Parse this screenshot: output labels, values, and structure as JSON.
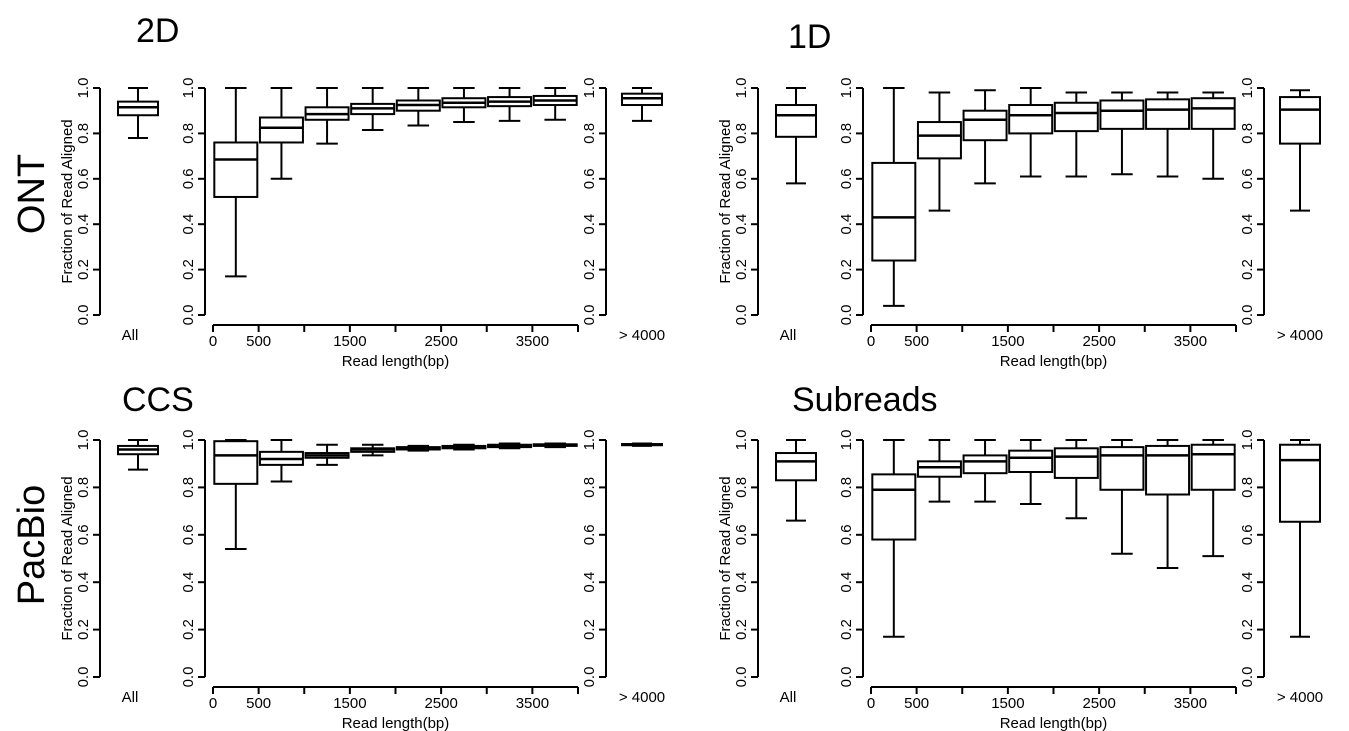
{
  "labels": {
    "row_top": "ONT",
    "row_bottom": "PacBio",
    "panel_2d": "2D",
    "panel_1d": "1D",
    "panel_ccs": "CCS",
    "panel_sub": "Subreads"
  },
  "chart_data": [
    {
      "type": "boxplot",
      "title": "2D",
      "ylabel": "Fraction of Read Aligned",
      "xlabel": "Read length(bp)",
      "ylim": [
        0,
        1
      ],
      "yticks": [
        "0.0",
        "0.2",
        "0.4",
        "0.6",
        "0.8",
        "1.0"
      ],
      "all_label": "All",
      "gt_label": "> 4000",
      "xticks": [
        "0",
        "500",
        "1500",
        "2500",
        "3500"
      ],
      "all": {
        "min": 0.78,
        "q1": 0.88,
        "median": 0.915,
        "q3": 0.94,
        "max": 1.0
      },
      "bins": [
        {
          "min": 0.17,
          "q1": 0.52,
          "median": 0.685,
          "q3": 0.76,
          "max": 1.0
        },
        {
          "min": 0.6,
          "q1": 0.76,
          "median": 0.825,
          "q3": 0.87,
          "max": 1.0
        },
        {
          "min": 0.755,
          "q1": 0.86,
          "median": 0.885,
          "q3": 0.915,
          "max": 1.0
        },
        {
          "min": 0.815,
          "q1": 0.885,
          "median": 0.91,
          "q3": 0.93,
          "max": 1.0
        },
        {
          "min": 0.835,
          "q1": 0.9,
          "median": 0.925,
          "q3": 0.945,
          "max": 1.0
        },
        {
          "min": 0.85,
          "q1": 0.915,
          "median": 0.935,
          "q3": 0.955,
          "max": 1.0
        },
        {
          "min": 0.855,
          "q1": 0.92,
          "median": 0.94,
          "q3": 0.96,
          "max": 1.0
        },
        {
          "min": 0.86,
          "q1": 0.925,
          "median": 0.945,
          "q3": 0.965,
          "max": 1.0
        }
      ],
      "gt": {
        "min": 0.855,
        "q1": 0.925,
        "median": 0.955,
        "q3": 0.975,
        "max": 1.0
      }
    },
    {
      "type": "boxplot",
      "title": "1D",
      "ylabel": "Fraction of Read Aligned",
      "xlabel": "Read length(bp)",
      "ylim": [
        0,
        1
      ],
      "yticks": [
        "0.0",
        "0.2",
        "0.4",
        "0.6",
        "0.8",
        "1.0"
      ],
      "all_label": "All",
      "gt_label": "> 4000",
      "xticks": [
        "0",
        "500",
        "1500",
        "2500",
        "3500"
      ],
      "all": {
        "min": 0.58,
        "q1": 0.785,
        "median": 0.88,
        "q3": 0.925,
        "max": 1.0
      },
      "bins": [
        {
          "min": 0.04,
          "q1": 0.24,
          "median": 0.43,
          "q3": 0.67,
          "max": 1.0
        },
        {
          "min": 0.46,
          "q1": 0.69,
          "median": 0.79,
          "q3": 0.85,
          "max": 0.98
        },
        {
          "min": 0.58,
          "q1": 0.77,
          "median": 0.86,
          "q3": 0.9,
          "max": 0.99
        },
        {
          "min": 0.61,
          "q1": 0.8,
          "median": 0.88,
          "q3": 0.925,
          "max": 1.0
        },
        {
          "min": 0.61,
          "q1": 0.81,
          "median": 0.89,
          "q3": 0.935,
          "max": 0.98
        },
        {
          "min": 0.62,
          "q1": 0.82,
          "median": 0.9,
          "q3": 0.945,
          "max": 0.98
        },
        {
          "min": 0.61,
          "q1": 0.82,
          "median": 0.905,
          "q3": 0.95,
          "max": 0.98
        },
        {
          "min": 0.6,
          "q1": 0.82,
          "median": 0.91,
          "q3": 0.955,
          "max": 0.98
        }
      ],
      "gt": {
        "min": 0.46,
        "q1": 0.755,
        "median": 0.905,
        "q3": 0.96,
        "max": 0.99
      }
    },
    {
      "type": "boxplot",
      "title": "CCS",
      "ylabel": "Fraction of Read Aligned",
      "xlabel": "Read length(bp)",
      "ylim": [
        0,
        1
      ],
      "yticks": [
        "0.0",
        "0.2",
        "0.4",
        "0.6",
        "0.8",
        "1.0"
      ],
      "all_label": "All",
      "gt_label": "> 4000",
      "xticks": [
        "0",
        "500",
        "1500",
        "2500",
        "3500"
      ],
      "all": {
        "min": 0.875,
        "q1": 0.94,
        "median": 0.96,
        "q3": 0.975,
        "max": 1.0
      },
      "bins": [
        {
          "min": 0.54,
          "q1": 0.815,
          "median": 0.935,
          "q3": 0.995,
          "max": 1.0
        },
        {
          "min": 0.825,
          "q1": 0.895,
          "median": 0.92,
          "q3": 0.95,
          "max": 1.0
        },
        {
          "min": 0.895,
          "q1": 0.925,
          "median": 0.935,
          "q3": 0.945,
          "max": 0.98
        },
        {
          "min": 0.935,
          "q1": 0.95,
          "median": 0.96,
          "q3": 0.965,
          "max": 0.98
        },
        {
          "min": 0.955,
          "q1": 0.96,
          "median": 0.965,
          "q3": 0.97,
          "max": 0.975
        },
        {
          "min": 0.96,
          "q1": 0.965,
          "median": 0.97,
          "q3": 0.975,
          "max": 0.98
        },
        {
          "min": 0.965,
          "q1": 0.97,
          "median": 0.975,
          "q3": 0.98,
          "max": 0.985
        },
        {
          "min": 0.97,
          "q1": 0.975,
          "median": 0.978,
          "q3": 0.982,
          "max": 0.985
        }
      ],
      "gt": {
        "min": 0.975,
        "q1": 0.978,
        "median": 0.98,
        "q3": 0.983,
        "max": 0.985
      }
    },
    {
      "type": "boxplot",
      "title": "Subreads",
      "ylabel": "Fraction of Read Aligned",
      "xlabel": "Read length(bp)",
      "ylim": [
        0,
        1
      ],
      "yticks": [
        "0.0",
        "0.2",
        "0.4",
        "0.6",
        "0.8",
        "1.0"
      ],
      "all_label": "All",
      "gt_label": "> 4000",
      "xticks": [
        "0",
        "500",
        "1500",
        "2500",
        "3500"
      ],
      "all": {
        "min": 0.66,
        "q1": 0.83,
        "median": 0.91,
        "q3": 0.945,
        "max": 1.0
      },
      "bins": [
        {
          "min": 0.17,
          "q1": 0.58,
          "median": 0.79,
          "q3": 0.855,
          "max": 1.0
        },
        {
          "min": 0.74,
          "q1": 0.845,
          "median": 0.885,
          "q3": 0.91,
          "max": 1.0
        },
        {
          "min": 0.74,
          "q1": 0.86,
          "median": 0.91,
          "q3": 0.935,
          "max": 1.0
        },
        {
          "min": 0.73,
          "q1": 0.865,
          "median": 0.925,
          "q3": 0.955,
          "max": 1.0
        },
        {
          "min": 0.67,
          "q1": 0.84,
          "median": 0.93,
          "q3": 0.965,
          "max": 1.0
        },
        {
          "min": 0.52,
          "q1": 0.79,
          "median": 0.935,
          "q3": 0.97,
          "max": 1.0
        },
        {
          "min": 0.46,
          "q1": 0.77,
          "median": 0.935,
          "q3": 0.975,
          "max": 1.0
        },
        {
          "min": 0.51,
          "q1": 0.79,
          "median": 0.94,
          "q3": 0.98,
          "max": 1.0
        }
      ],
      "gt": {
        "min": 0.17,
        "q1": 0.655,
        "median": 0.915,
        "q3": 0.98,
        "max": 1.0
      }
    }
  ]
}
